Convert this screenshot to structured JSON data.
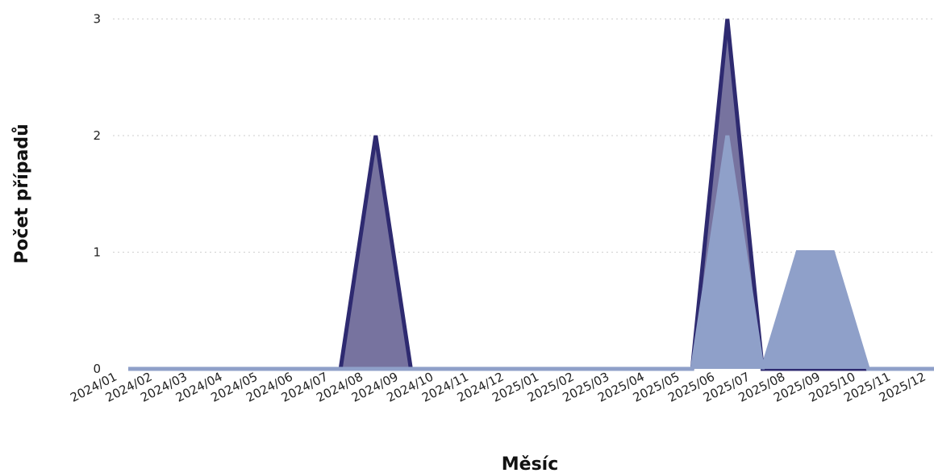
{
  "chart_data": {
    "type": "area",
    "title": "",
    "xlabel": "Měsíc",
    "ylabel": "Počet případů",
    "ylim": [
      0,
      3
    ],
    "yticks": [
      0,
      1,
      2,
      3
    ],
    "grid": "horizontal-dotted",
    "legend": "none",
    "categories": [
      "2024/01",
      "2024/02",
      "2024/03",
      "2024/04",
      "2024/05",
      "2024/06",
      "2024/07",
      "2024/08",
      "2024/09",
      "2024/10",
      "2024/11",
      "2024/12",
      "2025/01",
      "2025/02",
      "2025/03",
      "2025/04",
      "2025/05",
      "2025/06",
      "2025/07",
      "2025/08",
      "2025/09",
      "2025/10",
      "2025/11",
      "2025/12"
    ],
    "series": [
      {
        "color_fill": "#77739f",
        "color_line": "#2e2a70",
        "values": [
          0,
          0,
          0,
          0,
          0,
          0,
          0,
          0,
          2,
          0,
          0,
          0,
          0,
          0,
          0,
          0,
          0,
          0,
          3,
          0,
          0,
          0,
          0,
          0
        ]
      },
      {
        "color_fill": "#8fa0c9",
        "color_line": "#8fa0c9",
        "values": [
          0,
          0,
          0,
          0,
          0,
          0,
          0,
          0,
          0,
          0,
          0,
          0,
          0,
          0,
          0,
          0,
          0,
          0,
          2,
          0,
          1,
          1,
          0,
          0
        ]
      }
    ]
  }
}
